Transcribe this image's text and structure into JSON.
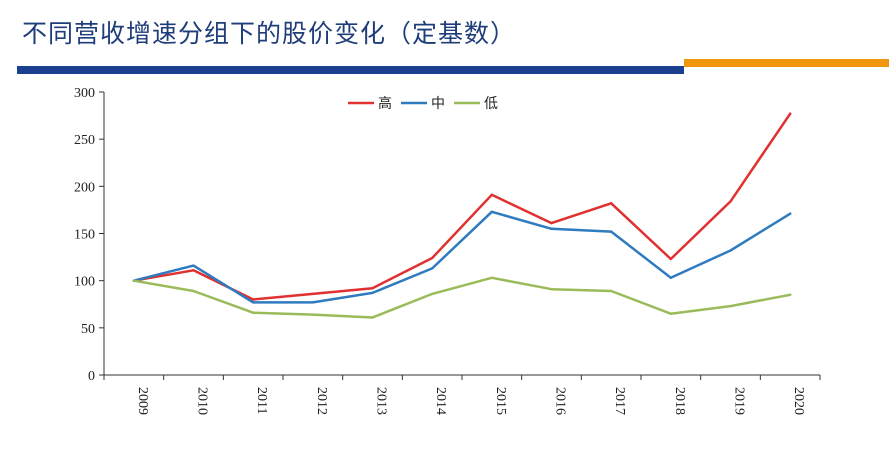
{
  "header": {
    "title": "不同营收增速分组下的股价变化（定基数）",
    "accent_colors": [
      "#1a3f8f",
      "#f0960e"
    ]
  },
  "chart_data": {
    "type": "line",
    "title": "不同营收增速分组下的股价变化（定基数）",
    "xlabel": "",
    "ylabel": "",
    "categories": [
      "2009",
      "2010",
      "2011",
      "2012",
      "2013",
      "2014",
      "2015",
      "2016",
      "2017",
      "2018",
      "2019",
      "2020"
    ],
    "ylim": [
      0,
      300
    ],
    "yticks": [
      0,
      50,
      100,
      150,
      200,
      250,
      300
    ],
    "grid": false,
    "legend_position": "top-center",
    "series": [
      {
        "name": "高",
        "color": "#e03030",
        "values": [
          100,
          111,
          80,
          86,
          92,
          124,
          191,
          161,
          182,
          123,
          184,
          277
        ]
      },
      {
        "name": "中",
        "color": "#2e7bbf",
        "values": [
          100,
          116,
          77,
          77,
          87,
          113,
          173,
          155,
          152,
          103,
          132,
          171
        ]
      },
      {
        "name": "低",
        "color": "#9bbb59",
        "values": [
          100,
          89,
          66,
          64,
          61,
          86,
          103,
          91,
          89,
          65,
          73,
          85
        ]
      }
    ]
  }
}
